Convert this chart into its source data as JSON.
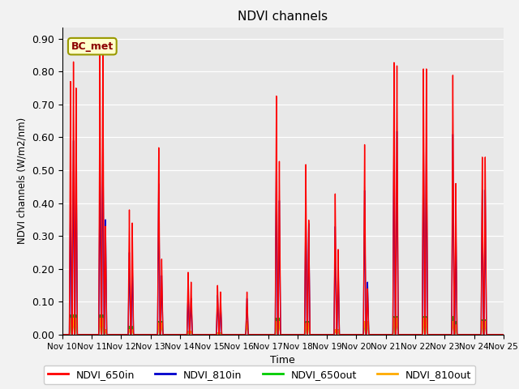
{
  "title": "NDVI channels",
  "ylabel": "NDVI channels (W/m2/nm)",
  "xlabel": "Time",
  "ylim": [
    0.0,
    0.935
  ],
  "yticks": [
    0.0,
    0.1,
    0.2,
    0.3,
    0.4,
    0.5,
    0.6,
    0.7,
    0.8,
    0.9
  ],
  "xtick_labels": [
    "Nov 10",
    "Nov 11",
    "Nov 12",
    "Nov 13",
    "Nov 14",
    "Nov 15",
    "Nov 16",
    "Nov 17",
    "Nov 18",
    "Nov 19",
    "Nov 20",
    "Nov 21",
    "Nov 22",
    "Nov 23",
    "Nov 24",
    "Nov 25"
  ],
  "colors": {
    "NDVI_650in": "#ff0000",
    "NDVI_810in": "#0000cc",
    "NDVI_650out": "#00cc00",
    "NDVI_810out": "#ffaa00"
  },
  "annotation_text": "BC_met",
  "annotation_color": "#8B0000",
  "annotation_bg": "#ffffcc",
  "annotation_border": "#999900",
  "axes_bg": "#e8e8e8",
  "fig_bg": "#f2f2f2",
  "spikes": [
    {
      "day": 0.28,
      "r650in": 0.77,
      "r810in": 0.42,
      "r650out": 0.06,
      "r810out": 0.05
    },
    {
      "day": 0.38,
      "r650in": 0.83,
      "r810in": 0.59,
      "r650out": 0.06,
      "r810out": 0.05
    },
    {
      "day": 0.47,
      "r650in": 0.75,
      "r810in": 0.58,
      "r650out": 0.06,
      "r810out": 0.05
    },
    {
      "day": 1.28,
      "r650in": 0.86,
      "r810in": 0.52,
      "r650out": 0.06,
      "r810out": 0.05
    },
    {
      "day": 1.38,
      "r650in": 0.86,
      "r810in": 0.64,
      "r650out": 0.06,
      "r810out": 0.05
    },
    {
      "day": 1.47,
      "r650in": 0.33,
      "r810in": 0.35,
      "r650out": 0.015,
      "r810out": 0.015
    },
    {
      "day": 2.28,
      "r650in": 0.38,
      "r810in": 0.25,
      "r650out": 0.025,
      "r810out": 0.015
    },
    {
      "day": 2.38,
      "r650in": 0.34,
      "r810in": 0.22,
      "r650out": 0.025,
      "r810out": 0.015
    },
    {
      "day": 3.28,
      "r650in": 0.57,
      "r810in": 0.46,
      "r650out": 0.04,
      "r810out": 0.035
    },
    {
      "day": 3.38,
      "r650in": 0.23,
      "r810in": 0.18,
      "r650out": 0.04,
      "r810out": 0.035
    },
    {
      "day": 4.28,
      "r650in": 0.19,
      "r810in": 0.13,
      "r650out": 0.01,
      "r810out": 0.01
    },
    {
      "day": 4.38,
      "r650in": 0.16,
      "r810in": 0.11,
      "r650out": 0.01,
      "r810out": 0.01
    },
    {
      "day": 5.28,
      "r650in": 0.15,
      "r810in": 0.12,
      "r650out": 0.005,
      "r810out": 0.005
    },
    {
      "day": 5.38,
      "r650in": 0.13,
      "r810in": 0.1,
      "r650out": 0.005,
      "r810out": 0.005
    },
    {
      "day": 6.28,
      "r650in": 0.13,
      "r810in": 0.11,
      "r650out": 0.04,
      "r810out": 0.04
    },
    {
      "day": 7.28,
      "r650in": 0.73,
      "r810in": 0.56,
      "r650out": 0.05,
      "r810out": 0.04
    },
    {
      "day": 7.38,
      "r650in": 0.53,
      "r810in": 0.41,
      "r650out": 0.05,
      "r810out": 0.04
    },
    {
      "day": 8.28,
      "r650in": 0.52,
      "r810in": 0.39,
      "r650out": 0.04,
      "r810out": 0.035
    },
    {
      "day": 8.38,
      "r650in": 0.35,
      "r810in": 0.34,
      "r650out": 0.04,
      "r810out": 0.035
    },
    {
      "day": 9.28,
      "r650in": 0.43,
      "r810in": 0.33,
      "r650out": 0.015,
      "r810out": 0.015
    },
    {
      "day": 9.38,
      "r650in": 0.26,
      "r810in": 0.22,
      "r650out": 0.015,
      "r810out": 0.015
    },
    {
      "day": 10.28,
      "r650in": 0.58,
      "r810in": 0.44,
      "r650out": 0.04,
      "r810out": 0.04
    },
    {
      "day": 10.38,
      "r650in": 0.14,
      "r810in": 0.16,
      "r650out": 0.04,
      "r810out": 0.04
    },
    {
      "day": 11.28,
      "r650in": 0.83,
      "r810in": 0.63,
      "r650out": 0.055,
      "r810out": 0.05
    },
    {
      "day": 11.38,
      "r650in": 0.82,
      "r810in": 0.62,
      "r650out": 0.055,
      "r810out": 0.05
    },
    {
      "day": 12.28,
      "r650in": 0.81,
      "r810in": 0.62,
      "r650out": 0.055,
      "r810out": 0.05
    },
    {
      "day": 12.38,
      "r650in": 0.81,
      "r810in": 0.61,
      "r650out": 0.055,
      "r810out": 0.05
    },
    {
      "day": 13.28,
      "r650in": 0.79,
      "r810in": 0.61,
      "r650out": 0.055,
      "r810out": 0.04
    },
    {
      "day": 13.38,
      "r650in": 0.46,
      "r810in": 0.35,
      "r650out": 0.04,
      "r810out": 0.03
    },
    {
      "day": 14.28,
      "r650in": 0.54,
      "r810in": 0.44,
      "r650out": 0.045,
      "r810out": 0.04
    },
    {
      "day": 14.38,
      "r650in": 0.54,
      "r810in": 0.44,
      "r650out": 0.045,
      "r810out": 0.04
    }
  ]
}
